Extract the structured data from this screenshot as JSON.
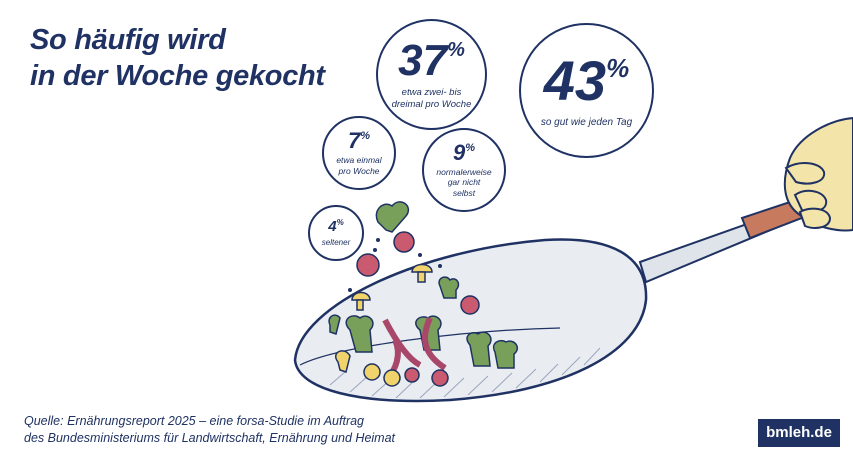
{
  "title": {
    "line1": "So häufig wird",
    "line2": "in der Woche gekocht"
  },
  "chart_data": {
    "type": "bubble",
    "unit": "%",
    "categories": [
      "so gut wie jeden Tag",
      "etwa zwei- bis dreimal pro Woche",
      "etwa einmal pro Woche",
      "normalerweise gar nicht selbst",
      "seltener"
    ],
    "values": [
      43,
      37,
      7,
      9,
      4
    ],
    "points": [
      {
        "value": 43,
        "unit": "%",
        "label": "so gut wie jeden Tag"
      },
      {
        "value": 37,
        "unit": "%",
        "label_lines": [
          "etwa zwei- bis",
          "dreimal pro Woche"
        ]
      },
      {
        "value": 7,
        "unit": "%",
        "label_lines": [
          "etwa einmal",
          "pro Woche"
        ]
      },
      {
        "value": 9,
        "unit": "%",
        "label_lines": [
          "normalerweise",
          "gar nicht",
          "selbst"
        ]
      },
      {
        "value": 4,
        "unit": "%",
        "label": "seltener"
      }
    ]
  },
  "source": {
    "line1": "Quelle: Ernährungsreport 2025 – eine forsa-Studie im Auftrag",
    "line2": "des Bundesministeriums für Landwirtschaft, Ernährung und Heimat"
  },
  "brand": "bmleh.de",
  "colors": {
    "primary": "#1f3263",
    "wok": "#e9ecf1",
    "handle": "#c87a5e",
    "skin": "#f3e4a9"
  }
}
